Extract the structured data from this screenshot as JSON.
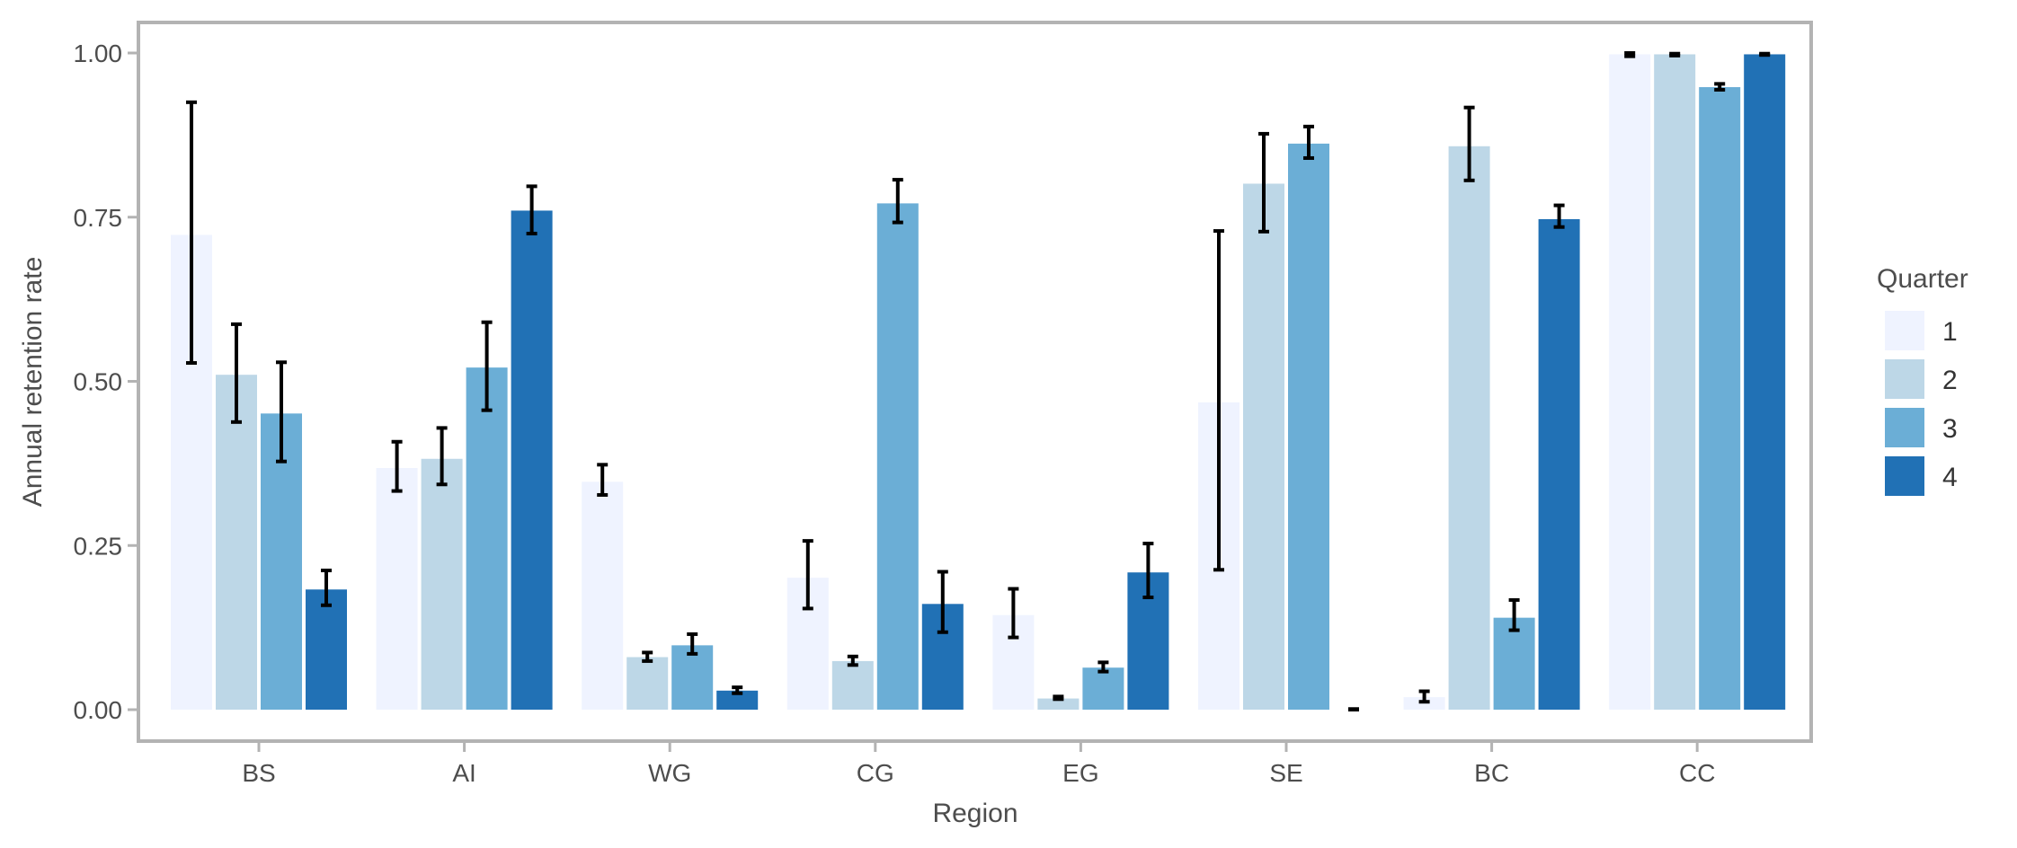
{
  "chart_data": {
    "type": "bar",
    "xlabel": "Region",
    "ylabel": "Annual retention rate",
    "ylim": [
      0,
      1.05
    ],
    "yticks": [
      0.0,
      0.25,
      0.5,
      0.75,
      1.0
    ],
    "ytick_labels": [
      "0.00",
      "0.25",
      "0.50",
      "0.75",
      "1.00"
    ],
    "grid": false,
    "legend": {
      "title": "Quarter",
      "placement": "right"
    },
    "categories": [
      "BS",
      "AI",
      "WG",
      "CG",
      "EG",
      "SE",
      "BC",
      "CC"
    ],
    "series": [
      {
        "name": "1",
        "color": "#eff3ff",
        "values": [
          0.723,
          0.368,
          0.347,
          0.201,
          0.144,
          0.468,
          0.019,
          0.998
        ],
        "err_low": [
          0.528,
          0.333,
          0.327,
          0.154,
          0.11,
          0.213,
          0.012,
          0.995
        ],
        "err_high": [
          0.925,
          0.408,
          0.373,
          0.257,
          0.184,
          0.729,
          0.028,
          1.0
        ]
      },
      {
        "name": "2",
        "color": "#bdd7e7",
        "values": [
          0.51,
          0.382,
          0.08,
          0.074,
          0.017,
          0.801,
          0.858,
          0.998
        ],
        "err_low": [
          0.438,
          0.343,
          0.074,
          0.068,
          0.016,
          0.728,
          0.806,
          0.996
        ],
        "err_high": [
          0.587,
          0.429,
          0.087,
          0.081,
          0.02,
          0.877,
          0.917,
          0.999
        ]
      },
      {
        "name": "3",
        "color": "#6baed6",
        "values": [
          0.451,
          0.521,
          0.098,
          0.771,
          0.064,
          0.862,
          0.14,
          0.948
        ],
        "err_low": [
          0.378,
          0.456,
          0.085,
          0.742,
          0.058,
          0.84,
          0.121,
          0.944
        ],
        "err_high": [
          0.529,
          0.59,
          0.115,
          0.807,
          0.072,
          0.888,
          0.167,
          0.953
        ]
      },
      {
        "name": "4",
        "color": "#2171b5",
        "values": [
          0.183,
          0.76,
          0.029,
          0.161,
          0.209,
          0.0,
          0.747,
          0.998
        ],
        "err_low": [
          0.159,
          0.725,
          0.025,
          0.118,
          0.171,
          0.0,
          0.735,
          0.997
        ],
        "err_high": [
          0.212,
          0.797,
          0.034,
          0.21,
          0.253,
          0.001,
          0.768,
          0.999
        ]
      }
    ]
  }
}
